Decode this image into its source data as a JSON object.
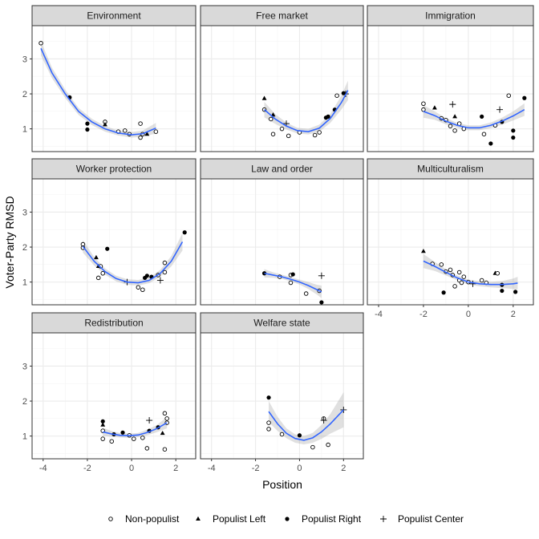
{
  "chart_data": {
    "type": "scatter",
    "xlabel": "Position",
    "ylabel": "Voter-Party RMSD",
    "xlim": [
      -4.5,
      2.9
    ],
    "ylim": [
      0.35,
      3.95
    ],
    "x_ticks": [
      -4,
      -2,
      0,
      2
    ],
    "y_ticks": [
      1,
      2,
      3
    ],
    "grid": true,
    "legend_position": "bottom",
    "colors": {
      "fit_line": "#3366ff",
      "ribbon": "#999999",
      "strip_bg": "#d9d9d9",
      "grid": "#ebebeb"
    },
    "legend": [
      {
        "label": "Non-populist",
        "shape": "circle-open"
      },
      {
        "label": "Populist Left",
        "shape": "triangle"
      },
      {
        "label": "Populist Right",
        "shape": "circle-filled"
      },
      {
        "label": "Populist Center",
        "shape": "plus"
      }
    ],
    "panels": [
      {
        "title": "Environment",
        "fit": {
          "x": [
            -4.1,
            -3.6,
            -3.0,
            -2.4,
            -1.8,
            -1.2,
            -0.6,
            0.0,
            0.5,
            1.1
          ],
          "y": [
            3.3,
            2.6,
            2.0,
            1.5,
            1.2,
            1.0,
            0.88,
            0.83,
            0.86,
            1.02
          ],
          "se": [
            0.2,
            0.15,
            0.12,
            0.1,
            0.09,
            0.08,
            0.07,
            0.08,
            0.09,
            0.15
          ]
        },
        "points": [
          {
            "x": -4.1,
            "y": 3.45,
            "g": "Non-populist"
          },
          {
            "x": -2.8,
            "y": 1.9,
            "g": "Populist Right"
          },
          {
            "x": -2.0,
            "y": 1.15,
            "g": "Populist Right"
          },
          {
            "x": -2.0,
            "y": 0.98,
            "g": "Populist Right"
          },
          {
            "x": -1.2,
            "y": 1.2,
            "g": "Non-populist"
          },
          {
            "x": -1.2,
            "y": 1.12,
            "g": "Populist Left"
          },
          {
            "x": -0.6,
            "y": 0.92,
            "g": "Non-populist"
          },
          {
            "x": -0.3,
            "y": 0.95,
            "g": "Non-populist"
          },
          {
            "x": -0.1,
            "y": 0.85,
            "g": "Non-populist"
          },
          {
            "x": 0.4,
            "y": 1.15,
            "g": "Non-populist"
          },
          {
            "x": 0.4,
            "y": 0.75,
            "g": "Non-populist"
          },
          {
            "x": 0.5,
            "y": 0.85,
            "g": "Non-populist"
          },
          {
            "x": 0.7,
            "y": 0.85,
            "g": "Populist Left"
          },
          {
            "x": 1.1,
            "y": 0.92,
            "g": "Non-populist"
          }
        ]
      },
      {
        "title": "Free market",
        "fit": {
          "x": [
            -1.6,
            -1.1,
            -0.6,
            -0.1,
            0.4,
            0.9,
            1.4,
            1.9,
            2.2
          ],
          "y": [
            1.55,
            1.28,
            1.08,
            0.95,
            0.92,
            1.02,
            1.3,
            1.75,
            2.1
          ],
          "se": [
            0.22,
            0.14,
            0.1,
            0.08,
            0.08,
            0.1,
            0.13,
            0.2,
            0.28
          ]
        },
        "points": [
          {
            "x": -1.6,
            "y": 1.55,
            "g": "Non-populist"
          },
          {
            "x": -1.6,
            "y": 1.87,
            "g": "Populist Left"
          },
          {
            "x": -1.2,
            "y": 1.4,
            "g": "Populist Left"
          },
          {
            "x": -1.3,
            "y": 1.28,
            "g": "Non-populist"
          },
          {
            "x": -1.2,
            "y": 0.85,
            "g": "Non-populist"
          },
          {
            "x": -0.8,
            "y": 1.0,
            "g": "Non-populist"
          },
          {
            "x": -0.6,
            "y": 1.15,
            "g": "Populist Center"
          },
          {
            "x": -0.5,
            "y": 0.8,
            "g": "Non-populist"
          },
          {
            "x": 0.0,
            "y": 0.9,
            "g": "Non-populist"
          },
          {
            "x": 0.7,
            "y": 0.82,
            "g": "Non-populist"
          },
          {
            "x": 0.9,
            "y": 0.9,
            "g": "Non-populist"
          },
          {
            "x": 1.2,
            "y": 1.32,
            "g": "Populist Right"
          },
          {
            "x": 1.3,
            "y": 1.35,
            "g": "Populist Right"
          },
          {
            "x": 1.6,
            "y": 1.55,
            "g": "Populist Right"
          },
          {
            "x": 1.7,
            "y": 1.95,
            "g": "Non-populist"
          },
          {
            "x": 2.0,
            "y": 2.02,
            "g": "Populist Right"
          },
          {
            "x": 2.1,
            "y": 2.0,
            "g": "Populist Center"
          }
        ]
      },
      {
        "title": "Immigration",
        "fit": {
          "x": [
            -2.0,
            -1.5,
            -1.0,
            -0.5,
            0.0,
            0.5,
            1.0,
            1.5,
            2.0,
            2.5
          ],
          "y": [
            1.5,
            1.38,
            1.22,
            1.1,
            1.03,
            1.03,
            1.1,
            1.22,
            1.37,
            1.55
          ],
          "se": [
            0.18,
            0.12,
            0.09,
            0.07,
            0.07,
            0.07,
            0.08,
            0.1,
            0.13,
            0.18
          ]
        },
        "points": [
          {
            "x": -2.0,
            "y": 1.72,
            "g": "Non-populist"
          },
          {
            "x": -2.0,
            "y": 1.55,
            "g": "Non-populist"
          },
          {
            "x": -1.5,
            "y": 1.6,
            "g": "Populist Left"
          },
          {
            "x": -1.2,
            "y": 1.3,
            "g": "Non-populist"
          },
          {
            "x": -1.0,
            "y": 1.25,
            "g": "Non-populist"
          },
          {
            "x": -0.8,
            "y": 1.08,
            "g": "Non-populist"
          },
          {
            "x": -0.7,
            "y": 1.7,
            "g": "Populist Center"
          },
          {
            "x": -0.6,
            "y": 1.35,
            "g": "Populist Left"
          },
          {
            "x": -0.6,
            "y": 0.95,
            "g": "Non-populist"
          },
          {
            "x": -0.4,
            "y": 1.15,
            "g": "Non-populist"
          },
          {
            "x": -0.2,
            "y": 1.0,
            "g": "Non-populist"
          },
          {
            "x": 0.6,
            "y": 1.35,
            "g": "Populist Right"
          },
          {
            "x": 0.7,
            "y": 0.85,
            "g": "Non-populist"
          },
          {
            "x": 1.0,
            "y": 0.58,
            "g": "Populist Right"
          },
          {
            "x": 1.2,
            "y": 1.1,
            "g": "Non-populist"
          },
          {
            "x": 1.4,
            "y": 1.55,
            "g": "Populist Center"
          },
          {
            "x": 1.5,
            "y": 1.2,
            "g": "Populist Right"
          },
          {
            "x": 1.8,
            "y": 1.95,
            "g": "Non-populist"
          },
          {
            "x": 2.0,
            "y": 0.95,
            "g": "Populist Right"
          },
          {
            "x": 2.0,
            "y": 0.75,
            "g": "Populist Right"
          },
          {
            "x": 2.5,
            "y": 1.88,
            "g": "Populist Right"
          }
        ]
      },
      {
        "title": "Worker protection",
        "fit": {
          "x": [
            -2.2,
            -1.7,
            -1.2,
            -0.7,
            -0.2,
            0.3,
            0.8,
            1.3,
            1.8,
            2.3
          ],
          "y": [
            2.02,
            1.6,
            1.3,
            1.1,
            1.0,
            0.98,
            1.05,
            1.25,
            1.6,
            2.15
          ],
          "se": [
            0.18,
            0.12,
            0.09,
            0.08,
            0.08,
            0.08,
            0.08,
            0.1,
            0.15,
            0.25
          ]
        },
        "points": [
          {
            "x": -2.2,
            "y": 2.08,
            "g": "Non-populist"
          },
          {
            "x": -2.2,
            "y": 1.98,
            "g": "Non-populist"
          },
          {
            "x": -1.6,
            "y": 1.7,
            "g": "Populist Left"
          },
          {
            "x": -1.5,
            "y": 1.45,
            "g": "Populist Left"
          },
          {
            "x": -1.4,
            "y": 1.45,
            "g": "Non-populist"
          },
          {
            "x": -1.5,
            "y": 1.12,
            "g": "Non-populist"
          },
          {
            "x": -1.3,
            "y": 1.25,
            "g": "Non-populist"
          },
          {
            "x": -1.1,
            "y": 1.95,
            "g": "Populist Right"
          },
          {
            "x": -0.2,
            "y": 1.0,
            "g": "Populist Center"
          },
          {
            "x": 0.3,
            "y": 0.85,
            "g": "Non-populist"
          },
          {
            "x": 0.5,
            "y": 0.78,
            "g": "Non-populist"
          },
          {
            "x": 0.6,
            "y": 1.12,
            "g": "Populist Right"
          },
          {
            "x": 0.7,
            "y": 1.18,
            "g": "Populist Right"
          },
          {
            "x": 0.9,
            "y": 1.15,
            "g": "Populist Right"
          },
          {
            "x": 1.2,
            "y": 1.2,
            "g": "Non-populist"
          },
          {
            "x": 1.3,
            "y": 1.05,
            "g": "Populist Center"
          },
          {
            "x": 1.5,
            "y": 1.28,
            "g": "Non-populist"
          },
          {
            "x": 1.5,
            "y": 1.55,
            "g": "Non-populist"
          },
          {
            "x": 2.4,
            "y": 2.42,
            "g": "Populist Right"
          }
        ]
      },
      {
        "title": "Law and order",
        "fit": {
          "x": [
            -1.6,
            -1.2,
            -0.8,
            -0.4,
            0.0,
            0.4,
            0.8,
            1.0
          ],
          "y": [
            1.25,
            1.2,
            1.15,
            1.08,
            1.0,
            0.9,
            0.78,
            0.72
          ],
          "se": [
            0.12,
            0.08,
            0.06,
            0.06,
            0.07,
            0.1,
            0.14,
            0.18
          ]
        },
        "points": [
          {
            "x": -1.6,
            "y": 1.25,
            "g": "Populist Right"
          },
          {
            "x": -0.9,
            "y": 1.15,
            "g": "Non-populist"
          },
          {
            "x": -0.4,
            "y": 1.2,
            "g": "Non-populist"
          },
          {
            "x": -0.3,
            "y": 1.22,
            "g": "Populist Right"
          },
          {
            "x": -0.4,
            "y": 0.98,
            "g": "Non-populist"
          },
          {
            "x": 0.3,
            "y": 0.67,
            "g": "Non-populist"
          },
          {
            "x": 0.9,
            "y": 0.75,
            "g": "Non-populist"
          },
          {
            "x": 1.0,
            "y": 1.18,
            "g": "Populist Center"
          },
          {
            "x": 1.0,
            "y": 0.42,
            "g": "Populist Right"
          }
        ]
      },
      {
        "title": "Multiculturalism",
        "fit": {
          "x": [
            -2.0,
            -1.5,
            -1.0,
            -0.5,
            0.0,
            0.5,
            1.0,
            1.5,
            2.0,
            2.2
          ],
          "y": [
            1.6,
            1.45,
            1.28,
            1.12,
            1.0,
            0.95,
            0.93,
            0.93,
            0.95,
            0.97
          ],
          "se": [
            0.2,
            0.13,
            0.09,
            0.07,
            0.07,
            0.07,
            0.08,
            0.1,
            0.15,
            0.18
          ]
        },
        "points": [
          {
            "x": -2.0,
            "y": 1.88,
            "g": "Populist Left"
          },
          {
            "x": -1.6,
            "y": 1.52,
            "g": "Non-populist"
          },
          {
            "x": -1.2,
            "y": 1.5,
            "g": "Non-populist"
          },
          {
            "x": -1.0,
            "y": 1.3,
            "g": "Non-populist"
          },
          {
            "x": -0.8,
            "y": 1.35,
            "g": "Non-populist"
          },
          {
            "x": -0.7,
            "y": 1.2,
            "g": "Non-populist"
          },
          {
            "x": -0.6,
            "y": 0.88,
            "g": "Non-populist"
          },
          {
            "x": -0.4,
            "y": 1.28,
            "g": "Non-populist"
          },
          {
            "x": -0.4,
            "y": 1.05,
            "g": "Non-populist"
          },
          {
            "x": -0.3,
            "y": 0.98,
            "g": "Non-populist"
          },
          {
            "x": -0.2,
            "y": 1.15,
            "g": "Non-populist"
          },
          {
            "x": 0.0,
            "y": 1.0,
            "g": "Non-populist"
          },
          {
            "x": 0.2,
            "y": 0.95,
            "g": "Populist Center"
          },
          {
            "x": 0.6,
            "y": 1.05,
            "g": "Non-populist"
          },
          {
            "x": 0.8,
            "y": 0.98,
            "g": "Non-populist"
          },
          {
            "x": 1.2,
            "y": 1.25,
            "g": "Populist Left"
          },
          {
            "x": 1.3,
            "y": 1.25,
            "g": "Non-populist"
          },
          {
            "x": 1.5,
            "y": 0.92,
            "g": "Populist Right"
          },
          {
            "x": 1.5,
            "y": 0.75,
            "g": "Populist Right"
          },
          {
            "x": -1.1,
            "y": 0.7,
            "g": "Populist Right"
          },
          {
            "x": 2.1,
            "y": 0.72,
            "g": "Populist Right"
          }
        ]
      },
      {
        "title": "Redistribution",
        "fit": {
          "x": [
            -1.3,
            -0.9,
            -0.5,
            -0.1,
            0.3,
            0.7,
            1.1,
            1.6
          ],
          "y": [
            1.12,
            1.06,
            1.02,
            1.01,
            1.03,
            1.1,
            1.2,
            1.38
          ],
          "se": [
            0.12,
            0.08,
            0.06,
            0.06,
            0.06,
            0.08,
            0.1,
            0.16
          ]
        },
        "points": [
          {
            "x": -1.3,
            "y": 1.42,
            "g": "Populist Right"
          },
          {
            "x": -1.3,
            "y": 1.32,
            "g": "Populist Left"
          },
          {
            "x": -1.3,
            "y": 1.15,
            "g": "Non-populist"
          },
          {
            "x": -1.3,
            "y": 0.92,
            "g": "Non-populist"
          },
          {
            "x": -0.9,
            "y": 0.85,
            "g": "Non-populist"
          },
          {
            "x": -0.8,
            "y": 1.05,
            "g": "Populist Right"
          },
          {
            "x": -0.4,
            "y": 1.1,
            "g": "Populist Right"
          },
          {
            "x": -0.1,
            "y": 1.02,
            "g": "Non-populist"
          },
          {
            "x": 0.1,
            "y": 0.92,
            "g": "Non-populist"
          },
          {
            "x": 0.5,
            "y": 0.95,
            "g": "Non-populist"
          },
          {
            "x": 0.7,
            "y": 0.65,
            "g": "Non-populist"
          },
          {
            "x": 0.8,
            "y": 1.45,
            "g": "Populist Center"
          },
          {
            "x": 0.8,
            "y": 1.15,
            "g": "Populist Right"
          },
          {
            "x": 1.2,
            "y": 1.25,
            "g": "Populist Right"
          },
          {
            "x": 1.4,
            "y": 1.08,
            "g": "Populist Left"
          },
          {
            "x": 1.5,
            "y": 1.65,
            "g": "Non-populist"
          },
          {
            "x": 1.5,
            "y": 0.62,
            "g": "Non-populist"
          },
          {
            "x": 1.6,
            "y": 1.5,
            "g": "Non-populist"
          },
          {
            "x": 1.6,
            "y": 1.38,
            "g": "Non-populist"
          }
        ]
      },
      {
        "title": "Welfare state",
        "fit": {
          "x": [
            -1.4,
            -1.0,
            -0.6,
            -0.2,
            0.2,
            0.6,
            1.0,
            1.4,
            2.0
          ],
          "y": [
            1.7,
            1.35,
            1.08,
            0.93,
            0.88,
            0.95,
            1.12,
            1.35,
            1.75
          ],
          "se": [
            0.3,
            0.2,
            0.14,
            0.12,
            0.12,
            0.14,
            0.2,
            0.28,
            0.5
          ]
        },
        "points": [
          {
            "x": -1.4,
            "y": 2.1,
            "g": "Populist Right"
          },
          {
            "x": -1.4,
            "y": 1.38,
            "g": "Non-populist"
          },
          {
            "x": -1.4,
            "y": 1.2,
            "g": "Non-populist"
          },
          {
            "x": -0.8,
            "y": 1.05,
            "g": "Non-populist"
          },
          {
            "x": 0.0,
            "y": 1.02,
            "g": "Populist Right"
          },
          {
            "x": 0.6,
            "y": 0.68,
            "g": "Non-populist"
          },
          {
            "x": 1.1,
            "y": 1.5,
            "g": "Non-populist"
          },
          {
            "x": 1.1,
            "y": 1.45,
            "g": "Populist Center"
          },
          {
            "x": 1.3,
            "y": 0.75,
            "g": "Non-populist"
          },
          {
            "x": 2.0,
            "y": 1.75,
            "g": "Populist Center"
          }
        ]
      }
    ]
  }
}
